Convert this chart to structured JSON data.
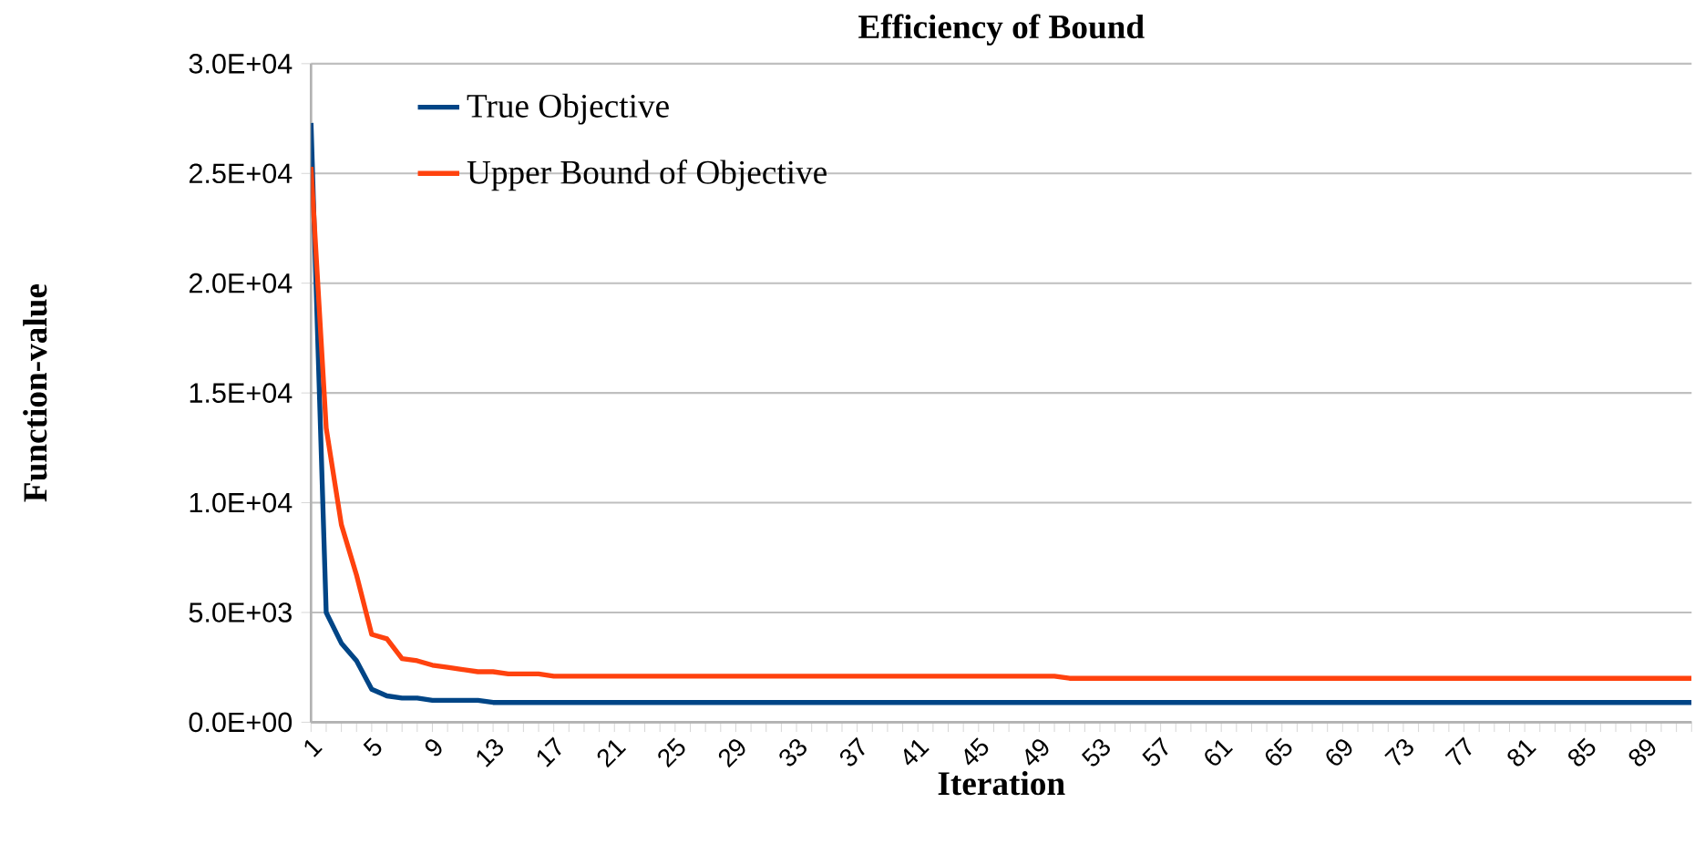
{
  "chart_data": {
    "type": "line",
    "title": "Efficiency of Bound",
    "xlabel": "Iteration",
    "ylabel": "Function-value",
    "categories": [
      "1",
      null,
      null,
      null,
      "5",
      null,
      null,
      null,
      "9",
      null,
      null,
      null,
      "13",
      null,
      null,
      null,
      "17",
      null,
      null,
      null,
      "21",
      null,
      null,
      null,
      "25",
      null,
      null,
      null,
      "29",
      null,
      null,
      null,
      "33",
      null,
      null,
      null,
      "37",
      null,
      null,
      null,
      "41",
      null,
      null,
      null,
      "45",
      null,
      null,
      null,
      "49",
      null,
      null,
      null,
      "53",
      null,
      null,
      null,
      "57",
      null,
      null,
      null,
      "61",
      null,
      null,
      null,
      "65",
      null,
      null,
      null,
      "69",
      null,
      null,
      null,
      "73",
      null,
      null,
      null,
      "77",
      null,
      null,
      null,
      "81",
      null,
      null,
      null,
      "85",
      null,
      null,
      null,
      "89",
      null,
      null,
      null
    ],
    "series": [
      {
        "name": "True Objective",
        "color": "#004586",
        "values": [
          27300,
          5000,
          3600,
          2800,
          1500,
          1200,
          1100,
          1100,
          1000,
          1000,
          1000,
          1000,
          900,
          900,
          900,
          900,
          900,
          900,
          900,
          900,
          900,
          900,
          900,
          900,
          900,
          900,
          900,
          900,
          900,
          900,
          900,
          900,
          900,
          900,
          900,
          900,
          900,
          900,
          900,
          900,
          900,
          900,
          900,
          900,
          900,
          900,
          900,
          900,
          900,
          900,
          900,
          900,
          900,
          900,
          900,
          900,
          900,
          900,
          900,
          900,
          900,
          900,
          900,
          900,
          900,
          900,
          900,
          900,
          900,
          900,
          900,
          900,
          900,
          900,
          900,
          900,
          900,
          900,
          900,
          900,
          900,
          900,
          900,
          900,
          900,
          900,
          900,
          900,
          900,
          900,
          900,
          900
        ]
      },
      {
        "name": "Upper Bound of Objective",
        "color": "#ff420e",
        "values": [
          25300,
          13400,
          9000,
          6700,
          4000,
          3800,
          2900,
          2800,
          2600,
          2500,
          2400,
          2300,
          2300,
          2200,
          2200,
          2200,
          2100,
          2100,
          2100,
          2100,
          2100,
          2100,
          2100,
          2100,
          2100,
          2100,
          2100,
          2100,
          2100,
          2100,
          2100,
          2100,
          2100,
          2100,
          2100,
          2100,
          2100,
          2100,
          2100,
          2100,
          2100,
          2100,
          2100,
          2100,
          2100,
          2100,
          2100,
          2100,
          2100,
          2100,
          2000,
          2000,
          2000,
          2000,
          2000,
          2000,
          2000,
          2000,
          2000,
          2000,
          2000,
          2000,
          2000,
          2000,
          2000,
          2000,
          2000,
          2000,
          2000,
          2000,
          2000,
          2000,
          2000,
          2000,
          2000,
          2000,
          2000,
          2000,
          2000,
          2000,
          2000,
          2000,
          2000,
          2000,
          2000,
          2000,
          2000,
          2000,
          2000,
          2000,
          2000,
          2000
        ]
      }
    ],
    "ylim": [
      0,
      30000
    ],
    "yticks": [
      {
        "value": 0,
        "label": "0.0E+00"
      },
      {
        "value": 5000,
        "label": "5.0E+03"
      },
      {
        "value": 10000,
        "label": "1.0E+04"
      },
      {
        "value": 15000,
        "label": "1.5E+04"
      },
      {
        "value": 20000,
        "label": "2.0E+04"
      },
      {
        "value": 25000,
        "label": "2.5E+04"
      },
      {
        "value": 30000,
        "label": "3.0E+04"
      }
    ],
    "grid": "y",
    "legend": "top left"
  }
}
